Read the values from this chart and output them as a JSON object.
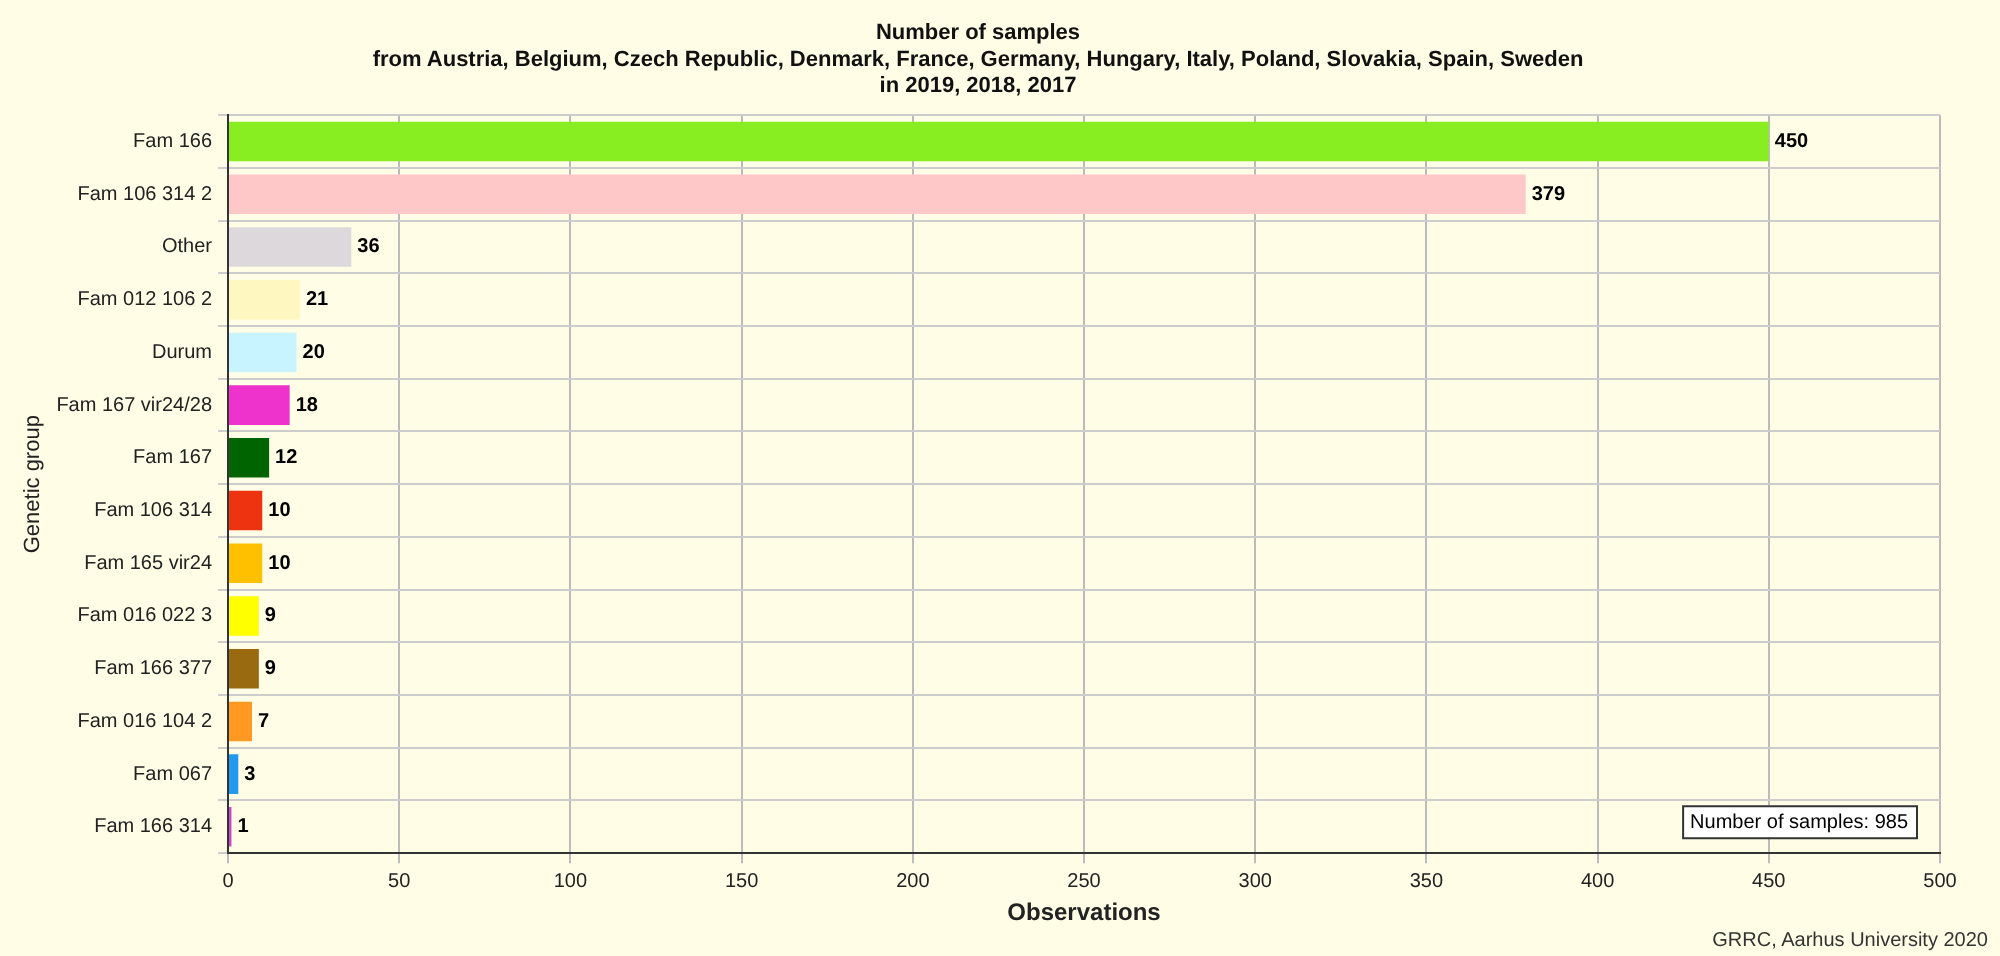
{
  "chart_data": {
    "type": "bar",
    "orientation": "horizontal",
    "title": "Number of samples",
    "subtitle": "from Austria, Belgium, Czech Republic, Denmark, France, Germany, Hungary, Italy, Poland, Slovakia, Spain, Sweden\nin 2019, 2018, 2017",
    "xlabel": "Observations",
    "ylabel": "Genetic group",
    "categories": [
      "Fam 166",
      "Fam 106 314 2",
      "Other",
      "Fam 012 106 2",
      "Durum",
      "Fam 167 vir24/28",
      "Fam 167",
      "Fam 106 314",
      "Fam 165 vir24",
      "Fam 016 022 3",
      "Fam 166 377",
      "Fam 016 104 2",
      "Fam 067",
      "Fam 166 314"
    ],
    "values": [
      450,
      379,
      36,
      21,
      20,
      18,
      12,
      10,
      10,
      9,
      9,
      7,
      3,
      1
    ],
    "colors": [
      "#88ee22",
      "#ffc8c8",
      "#dcd8dc",
      "#fff7c0",
      "#c8f4ff",
      "#ee33cc",
      "#006400",
      "#ee3311",
      "#ffc000",
      "#ffff00",
      "#9a6a10",
      "#ff9922",
      "#2299ee",
      "#cc44cc"
    ],
    "xlim": [
      0,
      500
    ],
    "xticks": [
      0,
      50,
      100,
      150,
      200,
      250,
      300,
      350,
      400,
      450,
      500
    ],
    "grid": true,
    "data_labels": true,
    "annotations": [
      "Number of samples: 985",
      "GRRC, Aarhus University 2020"
    ]
  }
}
